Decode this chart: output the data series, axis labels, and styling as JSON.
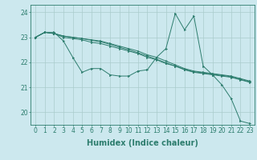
{
  "background_color": "#cce8ee",
  "grid_color": "#aacccc",
  "line_color": "#2d7d6e",
  "xlim": [
    -0.5,
    23.5
  ],
  "ylim": [
    19.5,
    24.3
  ],
  "yticks": [
    20,
    21,
    22,
    23,
    24
  ],
  "xticks": [
    0,
    1,
    2,
    3,
    4,
    5,
    6,
    7,
    8,
    9,
    10,
    11,
    12,
    13,
    14,
    15,
    16,
    17,
    18,
    19,
    20,
    21,
    22,
    23
  ],
  "xlabel": "Humidex (Indice chaleur)",
  "xlabel_fontsize": 7,
  "tick_fontsize": 5.5,
  "series1": [
    23.0,
    23.2,
    23.2,
    22.85,
    22.2,
    21.6,
    21.75,
    21.75,
    21.5,
    21.45,
    21.45,
    21.65,
    21.7,
    22.2,
    22.55,
    23.95,
    23.3,
    23.85,
    21.85,
    21.5,
    21.1,
    20.55,
    19.65,
    19.55
  ],
  "series2": [
    23.0,
    23.2,
    23.15,
    23.0,
    22.95,
    22.9,
    22.8,
    22.75,
    22.65,
    22.55,
    22.45,
    22.35,
    22.2,
    22.1,
    21.95,
    21.85,
    21.7,
    21.6,
    21.55,
    21.5,
    21.45,
    21.4,
    21.3,
    21.2
  ],
  "series3": [
    23.0,
    23.2,
    23.15,
    23.05,
    23.0,
    22.95,
    22.9,
    22.85,
    22.75,
    22.65,
    22.55,
    22.45,
    22.3,
    22.2,
    22.05,
    21.9,
    21.75,
    21.65,
    21.6,
    21.55,
    21.5,
    21.45,
    21.35,
    21.25
  ],
  "series4": [
    23.0,
    23.2,
    23.15,
    23.05,
    23.0,
    22.95,
    22.88,
    22.82,
    22.72,
    22.6,
    22.5,
    22.38,
    22.25,
    22.12,
    21.98,
    21.85,
    21.72,
    21.62,
    21.58,
    21.52,
    21.48,
    21.42,
    21.32,
    21.22
  ]
}
